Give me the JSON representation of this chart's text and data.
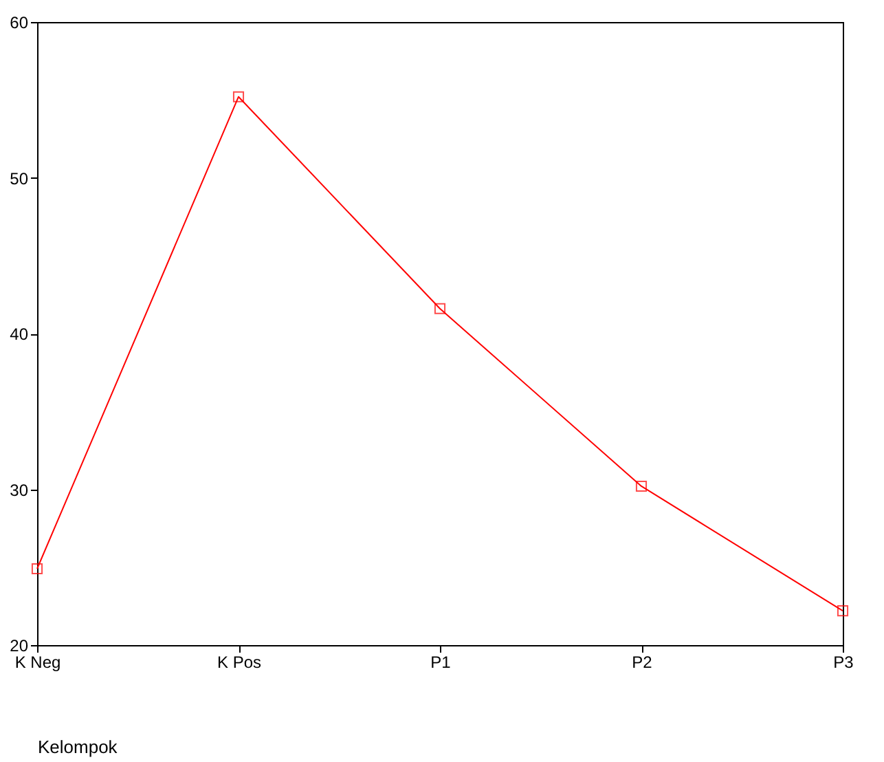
{
  "chart_data": {
    "type": "line",
    "xlabel": "Kelompok",
    "categories": [
      "K Neg",
      "K Pos",
      "P1",
      "P2",
      "P3"
    ],
    "series": [
      {
        "color": "#ff0000",
        "values": [
          24.9,
          55.2,
          41.6,
          30.2,
          22.2
        ]
      }
    ],
    "ylim": [
      20,
      60
    ],
    "yticks": [
      20,
      30,
      40,
      50,
      60
    ],
    "grid": false,
    "marker": "square",
    "line_style": "solid"
  }
}
